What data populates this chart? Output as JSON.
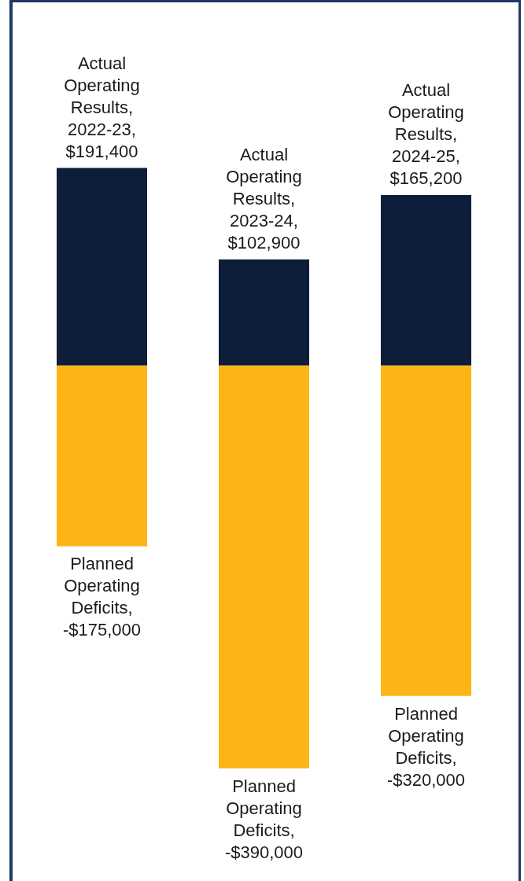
{
  "chart_data": {
    "type": "bar",
    "stacked": true,
    "categories": [
      null,
      null,
      null
    ],
    "series": [
      {
        "color": "#0d1e3a",
        "values": [
          191400,
          102900,
          165200
        ],
        "value_labels": [
          "Actual Operating Results, 2022-23, $191,400",
          "Actual Operating Results, 2023-24, $102,900",
          "Actual Operating Results, 2024-25, $165,200"
        ]
      },
      {
        "color": "#fdb515",
        "values": [
          -175000,
          -390000,
          -320000
        ],
        "value_labels": [
          "Planned Operating Deficits, -$175,000",
          "Planned Operating Deficits, -$390,000",
          "Planned Operating Deficits, -$320,000"
        ]
      }
    ]
  }
}
